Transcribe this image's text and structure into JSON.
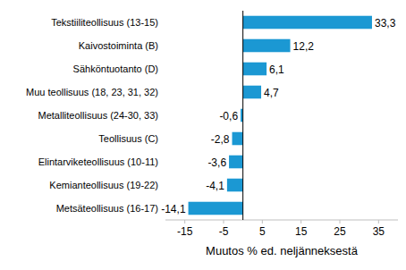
{
  "chart_data": {
    "type": "bar",
    "orientation": "horizontal",
    "categories": [
      "Tekstiiliteollisuus (13-15)",
      "Kaivostoiminta (B)",
      "Sähköntuotanto (D)",
      "Muu teollisuus (18, 23, 31, 32)",
      "Metalliteollisuus (24-30, 33)",
      "Teollisuus (C)",
      "Elintarviketeollisuus (10-11)",
      "Kemianteollisuus (19-22)",
      "Metsäteollisuus (16-17)"
    ],
    "values": [
      33.3,
      12.2,
      6.1,
      4.7,
      -0.6,
      -2.8,
      -3.6,
      -4.1,
      -14.1
    ],
    "value_labels": [
      "33,3",
      "12,2",
      "6,1",
      "4,7",
      "-0,6",
      "-2,8",
      "-3,6",
      "-4,1",
      "-14,1"
    ],
    "color": "#1b98d3",
    "xlabel": "Muutos % ed. neljänneksestä",
    "xlim": [
      -20,
      40
    ],
    "xticks": [
      -15,
      -5,
      5,
      15,
      25,
      35
    ],
    "grid": false,
    "data_labels": true
  }
}
